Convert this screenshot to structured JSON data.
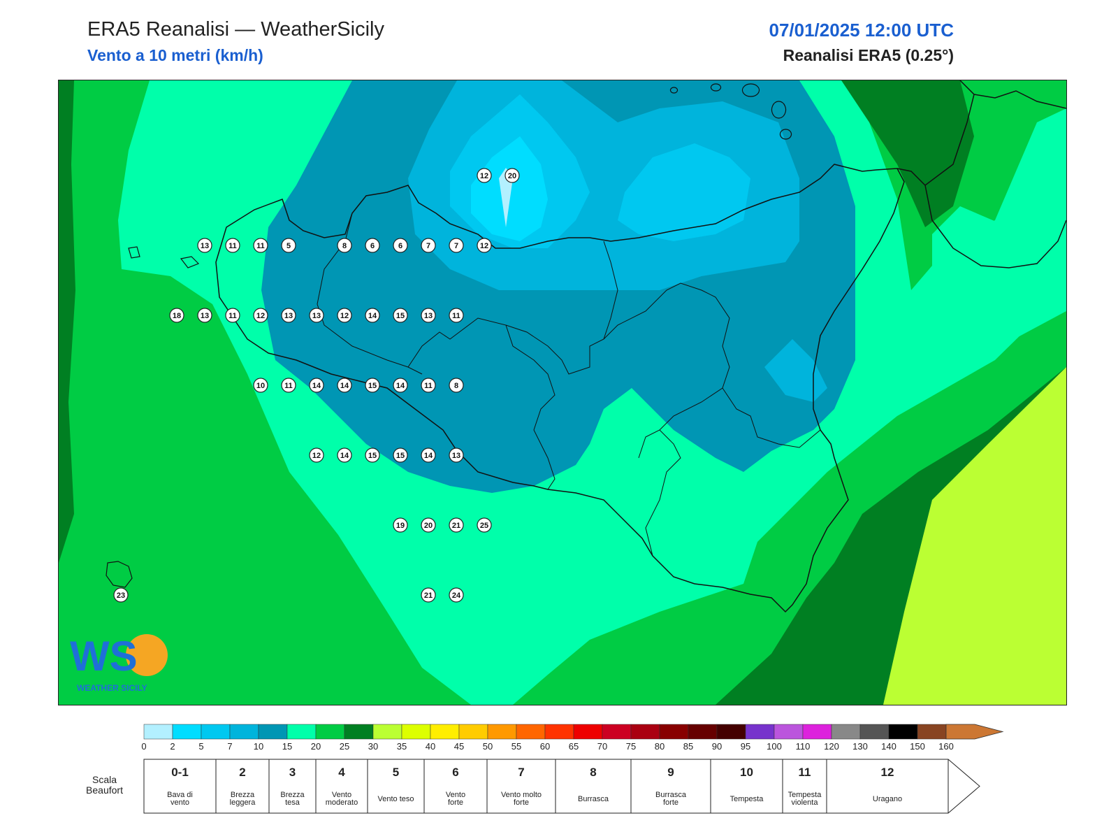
{
  "header": {
    "title": "ERA5 Reanalisi — WeatherSicily",
    "subtitle": "Vento a 10 metri (km/h)",
    "datetime": "07/01/2025 12:00 UTC",
    "source": "Reanalisi ERA5 (0.25°)"
  },
  "logo": {
    "text": "WEATHER SICILY",
    "monogram": "WS"
  },
  "map": {
    "region": "Sicilia",
    "station_values": [
      {
        "value": 13,
        "lon": 12.58,
        "lat": 38.0
      },
      {
        "value": 11,
        "lon": 13.08,
        "lat": 38.0
      },
      {
        "value": 11,
        "lon": 13.58,
        "lat": 38.0
      },
      {
        "value": 5,
        "lon": 14.08,
        "lat": 38.0
      },
      {
        "value": 8,
        "lon": 15.08,
        "lat": 38.0
      },
      {
        "value": 6,
        "lon": 15.58,
        "lat": 38.0
      },
      {
        "value": 6,
        "lon": 16.08,
        "lat": 38.0
      },
      {
        "value": 7,
        "lon": 16.58,
        "lat": 38.0
      },
      {
        "value": 7,
        "lon": 17.08,
        "lat": 38.0
      },
      {
        "value": 12,
        "lon": 17.58,
        "lat": 38.0
      },
      {
        "value": 12,
        "lon": 17.58,
        "lat": 38.5
      },
      {
        "value": 20,
        "lon": 18.08,
        "lat": 38.5
      },
      {
        "value": 18,
        "lon": 12.08,
        "lat": 37.5
      },
      {
        "value": 13,
        "lon": 12.58,
        "lat": 37.5
      },
      {
        "value": 11,
        "lon": 13.08,
        "lat": 37.5
      },
      {
        "value": 12,
        "lon": 13.58,
        "lat": 37.5
      },
      {
        "value": 13,
        "lon": 14.08,
        "lat": 37.5
      },
      {
        "value": 13,
        "lon": 14.58,
        "lat": 37.5
      },
      {
        "value": 12,
        "lon": 15.08,
        "lat": 37.5
      },
      {
        "value": 14,
        "lon": 15.58,
        "lat": 37.5
      },
      {
        "value": 15,
        "lon": 16.08,
        "lat": 37.5
      },
      {
        "value": 13,
        "lon": 16.58,
        "lat": 37.5
      },
      {
        "value": 11,
        "lon": 17.08,
        "lat": 37.5
      },
      {
        "value": 10,
        "lon": 13.58,
        "lat": 37.0
      },
      {
        "value": 11,
        "lon": 14.08,
        "lat": 37.0
      },
      {
        "value": 14,
        "lon": 14.58,
        "lat": 37.0
      },
      {
        "value": 14,
        "lon": 15.08,
        "lat": 37.0
      },
      {
        "value": 15,
        "lon": 15.58,
        "lat": 37.0
      },
      {
        "value": 14,
        "lon": 16.08,
        "lat": 37.0
      },
      {
        "value": 11,
        "lon": 16.58,
        "lat": 37.0
      },
      {
        "value": 8,
        "lon": 17.08,
        "lat": 37.0
      },
      {
        "value": 12,
        "lon": 14.58,
        "lat": 36.5
      },
      {
        "value": 14,
        "lon": 15.08,
        "lat": 36.5
      },
      {
        "value": 15,
        "lon": 15.58,
        "lat": 36.5
      },
      {
        "value": 15,
        "lon": 16.08,
        "lat": 36.5
      },
      {
        "value": 14,
        "lon": 16.58,
        "lat": 36.5
      },
      {
        "value": 13,
        "lon": 17.08,
        "lat": 36.5
      },
      {
        "value": 19,
        "lon": 16.08,
        "lat": 36.0
      },
      {
        "value": 20,
        "lon": 16.58,
        "lat": 36.0
      },
      {
        "value": 21,
        "lon": 17.08,
        "lat": 36.0
      },
      {
        "value": 25,
        "lon": 17.58,
        "lat": 36.0
      },
      {
        "value": 21,
        "lon": 16.58,
        "lat": 35.5
      },
      {
        "value": 24,
        "lon": 17.08,
        "lat": 35.5
      },
      {
        "value": 23,
        "lon": 11.08,
        "lat": 35.5
      }
    ]
  },
  "colorbar": {
    "unit": "km/h",
    "ticks": [
      "0",
      "2",
      "5",
      "7",
      "10",
      "15",
      "20",
      "25",
      "30",
      "35",
      "40",
      "45",
      "50",
      "55",
      "60",
      "65",
      "70",
      "75",
      "80",
      "85",
      "90",
      "95",
      "100",
      "110",
      "120",
      "130",
      "140",
      "150",
      "160"
    ],
    "colors": [
      "#b3f0ff",
      "#00ddff",
      "#00c8f0",
      "#00b4dc",
      "#0096b4",
      "#00ffaa",
      "#00cc44",
      "#007f22",
      "#bbff33",
      "#ddff00",
      "#ffee00",
      "#ffcc00",
      "#ff9900",
      "#ff6600",
      "#ff3300",
      "#ee0000",
      "#cc0022",
      "#aa0011",
      "#880000",
      "#660000",
      "#440000",
      "#7733cc",
      "#bb55dd",
      "#dd22dd",
      "#888888",
      "#555555",
      "#000000",
      "#884422",
      "#cc7733"
    ]
  },
  "beaufort": {
    "label": "Scala Beaufort",
    "label_line1": "Scala",
    "label_line2": "Beaufort",
    "classes": [
      {
        "num": "0-1",
        "name_line1": "Bava di",
        "name_line2": "vento"
      },
      {
        "num": "2",
        "name_line1": "Brezza",
        "name_line2": "leggera"
      },
      {
        "num": "3",
        "name_line1": "Brezza",
        "name_line2": "tesa"
      },
      {
        "num": "4",
        "name_line1": "Vento",
        "name_line2": "moderato"
      },
      {
        "num": "5",
        "name_line1": "Vento teso",
        "name_line2": ""
      },
      {
        "num": "6",
        "name_line1": "Vento",
        "name_line2": "forte"
      },
      {
        "num": "7",
        "name_line1": "Vento molto",
        "name_line2": "forte"
      },
      {
        "num": "8",
        "name_line1": "Burrasca",
        "name_line2": ""
      },
      {
        "num": "9",
        "name_line1": "Burrasca",
        "name_line2": "forte"
      },
      {
        "num": "10",
        "name_line1": "Tempesta",
        "name_line2": ""
      },
      {
        "num": "11",
        "name_line1": "Tempesta",
        "name_line2": "violenta"
      },
      {
        "num": "12",
        "name_line1": "Uragano",
        "name_line2": ""
      }
    ]
  }
}
